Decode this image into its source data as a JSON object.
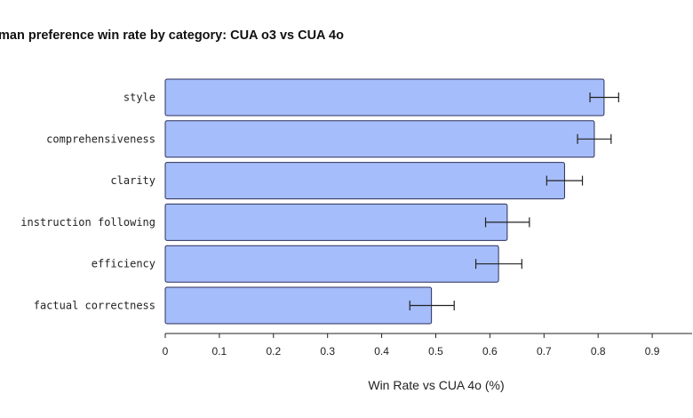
{
  "chart_data": {
    "type": "bar",
    "orientation": "horizontal",
    "title": "man preference win rate by category: CUA o3 vs CUA 4o",
    "xlabel": "Win Rate vs CUA 4o (%)",
    "ylabel": "",
    "xlim": [
      0,
      0.97
    ],
    "xticks": [
      "0",
      "0.1",
      "0.2",
      "0.3",
      "0.4",
      "0.5",
      "0.6",
      "0.7",
      "0.8",
      "0.9"
    ],
    "categories": [
      "style",
      "comprehensiveness",
      "clarity",
      "instruction following",
      "efficiency",
      "factual correctness"
    ],
    "values": [
      0.811,
      0.793,
      0.738,
      0.632,
      0.616,
      0.492
    ],
    "error_low": [
      0.785,
      0.762,
      0.705,
      0.592,
      0.574,
      0.452
    ],
    "error_high": [
      0.838,
      0.824,
      0.771,
      0.673,
      0.659,
      0.534
    ],
    "grid": false,
    "colors": {
      "bar_fill": "#a6bdfb",
      "bar_edge": "#2b2f5a",
      "error_bar": "#222222"
    }
  }
}
